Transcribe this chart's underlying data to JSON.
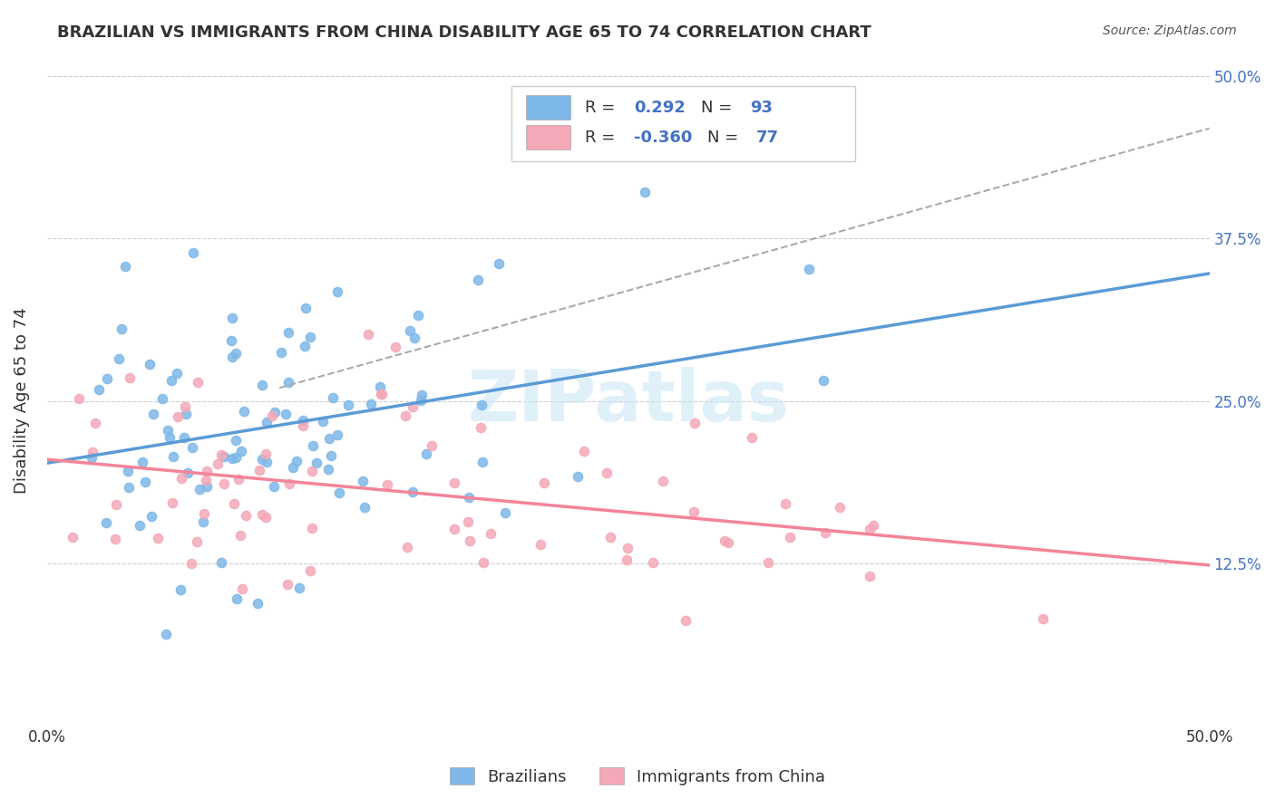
{
  "title": "BRAZILIAN VS IMMIGRANTS FROM CHINA DISABILITY AGE 65 TO 74 CORRELATION CHART",
  "source": "Source: ZipAtlas.com",
  "ylabel": "Disability Age 65 to 74",
  "xlim": [
    0.0,
    0.5
  ],
  "ylim": [
    0.0,
    0.5
  ],
  "ytick_positions": [
    0.125,
    0.25,
    0.375,
    0.5
  ],
  "ytick_labels": [
    "12.5%",
    "25.0%",
    "37.5%",
    "50.0%"
  ],
  "blue_color": "#7EB8E8",
  "pink_color": "#F4A8B8",
  "line_blue": "#5B9BD5",
  "line_pink": "#F48498",
  "legend_blue_r": "0.292",
  "legend_blue_n": "93",
  "legend_pink_r": "-0.360",
  "legend_pink_n": "77",
  "r_blue": 0.292,
  "n_blue": 93,
  "r_pink": -0.36,
  "n_pink": 77,
  "seed": 42
}
